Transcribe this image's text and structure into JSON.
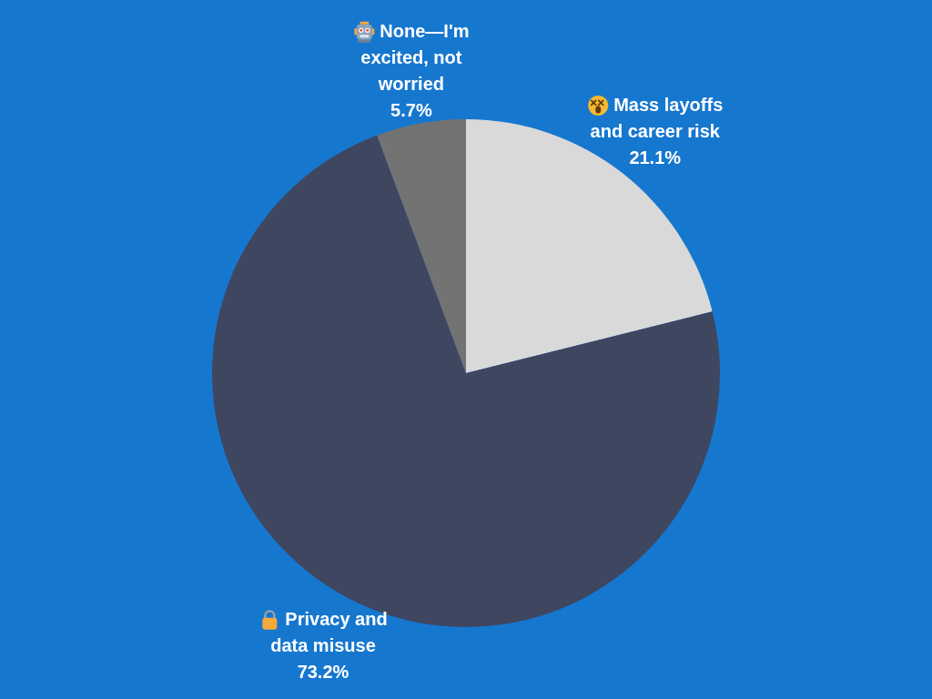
{
  "chart_data": {
    "type": "pie",
    "categories": [
      "Mass layoffs and career risk",
      "Privacy and data misuse",
      "None—I'm excited, not worried"
    ],
    "values": [
      21.1,
      73.2,
      5.7
    ],
    "colors": [
      "#d9d9d9",
      "#3f4660",
      "#737373"
    ],
    "value_labels": [
      "21.1%",
      "73.2%",
      "5.7%"
    ]
  }
}
